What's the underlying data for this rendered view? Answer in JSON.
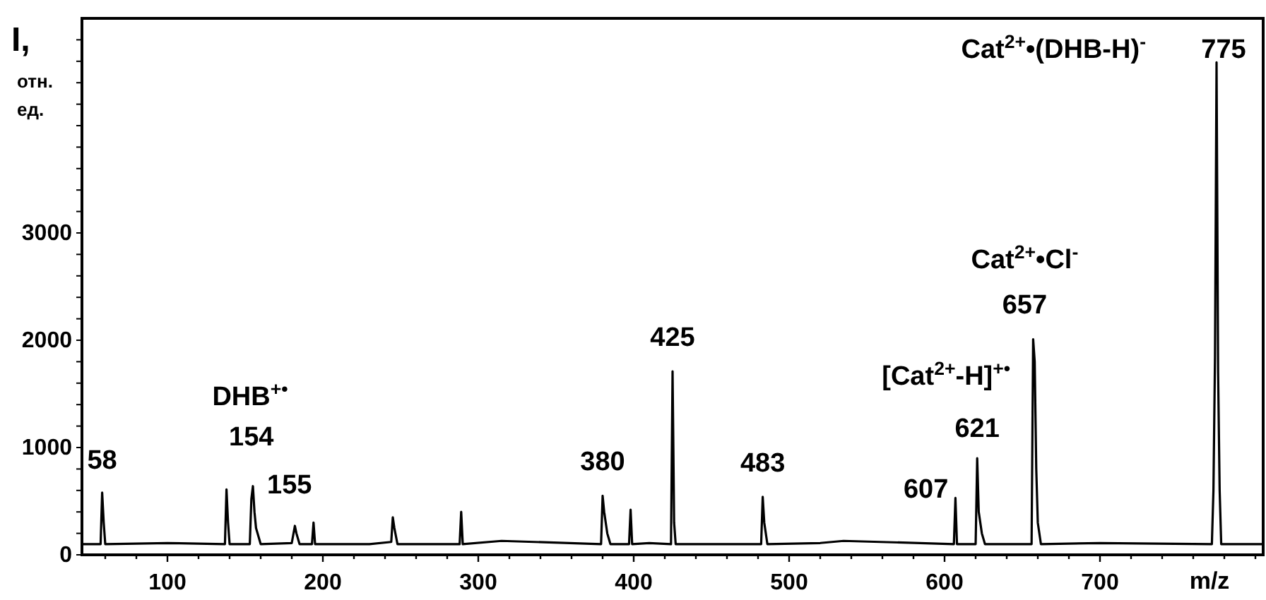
{
  "chart_data": {
    "type": "line",
    "xlabel": "m/z",
    "ylabel": "I, отн. ед.",
    "x": [
      45,
      57,
      58,
      59,
      60,
      100,
      137,
      138,
      139,
      140,
      153,
      154,
      155,
      156,
      157,
      160,
      180,
      182,
      183,
      185,
      193,
      194,
      195,
      230,
      244,
      245,
      246,
      248,
      288,
      289,
      290,
      315,
      379,
      380,
      381,
      383,
      385,
      397,
      398,
      399,
      410,
      424,
      425,
      426,
      427,
      470,
      482,
      483,
      484,
      486,
      520,
      535,
      606,
      607,
      608,
      620,
      621,
      622,
      624,
      626,
      656,
      657,
      658,
      659,
      660,
      662,
      700,
      772,
      773,
      774,
      775,
      776,
      777,
      778,
      780,
      805
    ],
    "series": [
      {
        "color": "#000000",
        "values": [
          100,
          100,
          580,
          300,
          100,
          110,
          100,
          610,
          300,
          100,
          100,
          520,
          640,
          400,
          250,
          100,
          110,
          270,
          200,
          100,
          100,
          300,
          100,
          100,
          120,
          350,
          250,
          100,
          100,
          400,
          100,
          130,
          100,
          550,
          400,
          200,
          100,
          100,
          420,
          100,
          110,
          100,
          1710,
          300,
          100,
          100,
          100,
          540,
          300,
          100,
          110,
          130,
          100,
          530,
          100,
          100,
          900,
          400,
          200,
          100,
          100,
          2010,
          1800,
          800,
          300,
          100,
          110,
          100,
          600,
          1840,
          4590,
          1700,
          600,
          100,
          100,
          100
        ]
      }
    ],
    "xlim": [
      45,
      805
    ],
    "xticks": [
      {
        "value": 60,
        "label": null
      },
      {
        "value": 80,
        "label": null
      },
      100,
      {
        "value": 120,
        "label": null
      },
      {
        "value": 140,
        "label": null
      },
      {
        "value": 160,
        "label": null
      },
      {
        "value": 180,
        "label": null
      },
      200,
      {
        "value": 220,
        "label": null
      },
      {
        "value": 240,
        "label": null
      },
      {
        "value": 260,
        "label": null
      },
      {
        "value": 280,
        "label": null
      },
      300,
      {
        "value": 320,
        "label": null
      },
      {
        "value": 340,
        "label": null
      },
      {
        "value": 360,
        "label": null
      },
      {
        "value": 380,
        "label": null
      },
      400,
      {
        "value": 420,
        "label": null
      },
      {
        "value": 440,
        "label": null
      },
      {
        "value": 460,
        "label": null
      },
      {
        "value": 480,
        "label": null
      },
      500,
      {
        "value": 520,
        "label": null
      },
      {
        "value": 540,
        "label": null
      },
      {
        "value": 560,
        "label": null
      },
      {
        "value": 580,
        "label": null
      },
      600,
      {
        "value": 620,
        "label": null
      },
      {
        "value": 640,
        "label": null
      },
      {
        "value": 660,
        "label": null
      },
      {
        "value": 680,
        "label": null
      },
      700,
      {
        "value": 720,
        "label": null
      },
      {
        "value": 740,
        "label": null
      },
      {
        "value": 760,
        "label": null
      },
      {
        "value": 780,
        "label": null
      },
      {
        "value": 800,
        "label": null
      }
    ],
    "ylim": [
      0,
      5000
    ],
    "yticks": [
      0,
      {
        "value": 200,
        "label": null
      },
      {
        "value": 400,
        "label": null
      },
      {
        "value": 600,
        "label": null
      },
      {
        "value": 800,
        "label": null
      },
      1000,
      {
        "value": 1200,
        "label": null
      },
      {
        "value": 1400,
        "label": null
      },
      {
        "value": 1600,
        "label": null
      },
      {
        "value": 1800,
        "label": null
      },
      2000,
      {
        "value": 2200,
        "label": null
      },
      {
        "value": 2400,
        "label": null
      },
      {
        "value": 2600,
        "label": null
      },
      {
        "value": 2800,
        "label": null
      },
      3000,
      {
        "value": 3200,
        "label": null
      },
      {
        "value": 3400,
        "label": null
      },
      {
        "value": 3600,
        "label": null
      },
      {
        "value": 3800,
        "label": null
      },
      {
        "value": 4000,
        "label": null
      },
      {
        "value": 4200,
        "label": null
      },
      {
        "value": 4400,
        "label": null
      },
      {
        "value": 4600,
        "label": null
      },
      {
        "value": 4800,
        "label": null
      }
    ],
    "grid": false,
    "marker": "none",
    "line_style": "solid",
    "annotations": [
      {
        "text": "58",
        "x": 58,
        "y": 580
      },
      "DHB$^{+•}$",
      {
        "text": "154",
        "x": 154,
        "y": 520
      },
      {
        "text": "155",
        "x": 155,
        "y": 640
      },
      {
        "text": "380",
        "x": 380,
        "y": 550
      },
      {
        "text": "425",
        "x": 425,
        "y": 1710
      },
      {
        "text": "483",
        "x": 483,
        "y": 540
      },
      {
        "text": "607",
        "x": 607,
        "y": 530
      },
      {
        "text": "621",
        "x": 621,
        "y": 900
      },
      {
        "text": "[Cat$^{2+}$-H]$^{+•}$",
        "x": 621,
        "y": 900
      },
      {
        "text": "657",
        "x": 657,
        "y": 2010
      },
      {
        "text": "Cat$^{2+}$•Cl$^{-}$",
        "x": 657,
        "y": 2010
      },
      {
        "text": "Cat$^{2+}$•(DHB-H)$^{-}$",
        "x": 775,
        "y": 4590
      },
      {
        "text": "775",
        "x": 775,
        "y": 4590
      }
    ]
  }
}
